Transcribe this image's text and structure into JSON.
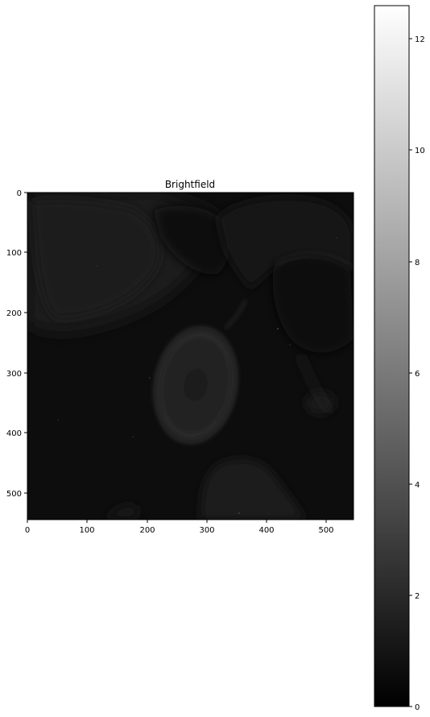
{
  "figure": {
    "title": "Brightfield"
  },
  "image_panel": {
    "content": "grayscale brightfield microscopy image",
    "x_range": [
      0,
      545
    ],
    "y_range": [
      545,
      0
    ],
    "x_ticks": [
      0,
      100,
      200,
      300,
      400,
      500
    ],
    "y_ticks": [
      0,
      100,
      200,
      300,
      400,
      500
    ]
  },
  "colorbar": {
    "colormap": "gray",
    "range": [
      0,
      12.6
    ],
    "ticks": [
      0,
      2,
      4,
      6,
      8,
      10,
      12
    ],
    "color_low": "#000000",
    "color_high": "#ffffff"
  }
}
